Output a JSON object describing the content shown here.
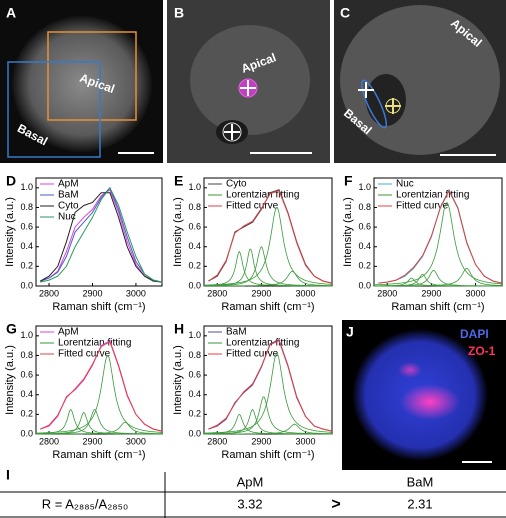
{
  "image_panels": [
    {
      "label": "A",
      "annotations": [
        "Apical",
        "Basal"
      ]
    },
    {
      "label": "B",
      "annotations": [
        "Apical"
      ]
    },
    {
      "label": "C",
      "annotations": [
        "Apical",
        "Basal"
      ]
    },
    {
      "label": "J",
      "annotations": [
        "DAPI",
        "ZO-1"
      ]
    }
  ],
  "chart_data": [
    {
      "type": "line",
      "label": "D",
      "xlabel": "Raman shift (cm⁻¹)",
      "ylabel": "Intensity (a.u.)",
      "x": [
        2780,
        2800,
        2820,
        2840,
        2860,
        2880,
        2900,
        2920,
        2940,
        2960,
        2980,
        3000,
        3020,
        3040,
        3060
      ],
      "xlim": [
        2770,
        3060
      ],
      "xticks": [
        2800,
        2900,
        3000
      ],
      "ylim": [
        0,
        1.1
      ],
      "yticks": [
        {
          "value": 0,
          "label": "0.0"
        },
        {
          "value": 0.2,
          "label": "0.2"
        },
        {
          "value": 0.4,
          "label": "0.4"
        },
        {
          "value": 0.6,
          "label": "0.6"
        },
        {
          "value": 0.8,
          "label": "0.8"
        },
        {
          "value": 1,
          "label": "1.0"
        }
      ],
      "series": [
        {
          "name": "ApM",
          "color": "#e040e0",
          "values": [
            0.05,
            0.08,
            0.15,
            0.35,
            0.6,
            0.7,
            0.78,
            0.92,
            0.98,
            0.75,
            0.45,
            0.22,
            0.1,
            0.06,
            0.04
          ]
        },
        {
          "name": "BaM",
          "color": "#4a5ad0",
          "values": [
            0.05,
            0.08,
            0.14,
            0.3,
            0.55,
            0.65,
            0.75,
            0.9,
            1.0,
            0.78,
            0.5,
            0.25,
            0.12,
            0.06,
            0.04
          ]
        },
        {
          "name": "Cyto",
          "color": "#222222",
          "values": [
            0.05,
            0.1,
            0.2,
            0.45,
            0.75,
            0.82,
            0.85,
            0.95,
            0.95,
            0.7,
            0.4,
            0.2,
            0.1,
            0.05,
            0.04
          ]
        },
        {
          "name": "Nuc",
          "color": "#2a9a5a",
          "values": [
            0.04,
            0.06,
            0.1,
            0.2,
            0.4,
            0.55,
            0.7,
            0.88,
            1.0,
            0.82,
            0.55,
            0.3,
            0.12,
            0.06,
            0.04
          ]
        }
      ]
    },
    {
      "type": "line",
      "label": "E",
      "xlabel": "Raman shift (cm⁻¹)",
      "ylabel": "Intensity (a.u.)",
      "x": [
        2780,
        2800,
        2820,
        2840,
        2860,
        2880,
        2900,
        2920,
        2940,
        2960,
        2980,
        3000,
        3020,
        3040,
        3060
      ],
      "xlim": [
        2770,
        3060
      ],
      "xticks": [
        2800,
        2900,
        3000
      ],
      "ylim": [
        0,
        1.1
      ],
      "yticks": [
        {
          "value": 0,
          "label": "0.0"
        },
        {
          "value": 0.2,
          "label": "0.2"
        },
        {
          "value": 0.4,
          "label": "0.4"
        },
        {
          "value": 0.6,
          "label": "0.6"
        },
        {
          "value": 0.8,
          "label": "0.8"
        },
        {
          "value": 1,
          "label": "1.0"
        }
      ],
      "series": [
        {
          "name": "Cyto",
          "color": "#444444",
          "values": [
            0.05,
            0.1,
            0.25,
            0.55,
            0.6,
            0.65,
            0.78,
            0.95,
            0.98,
            0.75,
            0.45,
            0.22,
            0.1,
            0.05,
            0.03
          ]
        },
        {
          "name": "Lorentzian fitting",
          "color": "#3a9a3a",
          "peaks": [
            {
              "center": 2850,
              "height": 0.35,
              "width": 10
            },
            {
              "center": 2875,
              "height": 0.38,
              "width": 10
            },
            {
              "center": 2900,
              "height": 0.4,
              "width": 12
            },
            {
              "center": 2935,
              "height": 0.8,
              "width": 18
            },
            {
              "center": 2970,
              "height": 0.15,
              "width": 14
            }
          ]
        },
        {
          "name": "Fitted curve",
          "color": "#e04040",
          "values": [
            0.05,
            0.11,
            0.26,
            0.54,
            0.61,
            0.66,
            0.79,
            0.94,
            0.97,
            0.74,
            0.44,
            0.21,
            0.1,
            0.05,
            0.03
          ]
        }
      ]
    },
    {
      "type": "line",
      "label": "F",
      "xlabel": "Raman shift (cm⁻¹)",
      "ylabel": "Intensity (a.u.)",
      "x": [
        2780,
        2800,
        2820,
        2840,
        2860,
        2880,
        2900,
        2920,
        2940,
        2960,
        2980,
        3000,
        3020,
        3040,
        3060
      ],
      "xlim": [
        2770,
        3060
      ],
      "xticks": [
        2800,
        2900,
        3000
      ],
      "ylim": [
        0,
        1.1
      ],
      "yticks": [
        {
          "value": 0,
          "label": "0.0"
        },
        {
          "value": 0.2,
          "label": "0.2"
        },
        {
          "value": 0.4,
          "label": "0.4"
        },
        {
          "value": 0.6,
          "label": "0.6"
        },
        {
          "value": 0.8,
          "label": "0.8"
        },
        {
          "value": 1,
          "label": "1.0"
        }
      ],
      "series": [
        {
          "name": "Nuc",
          "color": "#3ab0d0",
          "values": [
            0.03,
            0.04,
            0.06,
            0.1,
            0.18,
            0.3,
            0.5,
            0.8,
            0.98,
            0.8,
            0.45,
            0.22,
            0.1,
            0.05,
            0.03
          ]
        },
        {
          "name": "Lorentzian fitting",
          "color": "#3a9a3a",
          "peaks": [
            {
              "center": 2855,
              "height": 0.08,
              "width": 10
            },
            {
              "center": 2880,
              "height": 0.12,
              "width": 10
            },
            {
              "center": 2905,
              "height": 0.16,
              "width": 12
            },
            {
              "center": 2935,
              "height": 0.85,
              "width": 20
            },
            {
              "center": 2980,
              "height": 0.18,
              "width": 14
            }
          ]
        },
        {
          "name": "Fitted curve",
          "color": "#e04040",
          "values": [
            0.03,
            0.04,
            0.06,
            0.11,
            0.19,
            0.31,
            0.51,
            0.79,
            0.97,
            0.79,
            0.44,
            0.22,
            0.1,
            0.05,
            0.03
          ]
        }
      ]
    },
    {
      "type": "line",
      "label": "G",
      "xlabel": "Raman shift (cm⁻¹)",
      "ylabel": "Intensity (a.u.)",
      "x": [
        2780,
        2800,
        2820,
        2840,
        2860,
        2880,
        2900,
        2920,
        2940,
        2960,
        2980,
        3000,
        3020,
        3040,
        3060
      ],
      "xlim": [
        2770,
        3060
      ],
      "xticks": [
        2800,
        2900,
        3000
      ],
      "ylim": [
        0,
        1.1
      ],
      "yticks": [
        {
          "value": 0,
          "label": "0.0"
        },
        {
          "value": 0.2,
          "label": "0.2"
        },
        {
          "value": 0.4,
          "label": "0.4"
        },
        {
          "value": 0.6,
          "label": "0.6"
        },
        {
          "value": 0.8,
          "label": "0.8"
        },
        {
          "value": 1,
          "label": "1.0"
        }
      ],
      "series": [
        {
          "name": "ApM",
          "color": "#e040e0",
          "values": [
            0.05,
            0.08,
            0.18,
            0.38,
            0.45,
            0.55,
            0.7,
            0.9,
            0.95,
            0.7,
            0.4,
            0.2,
            0.1,
            0.05,
            0.03
          ]
        },
        {
          "name": "Lorentzian fitting",
          "color": "#3a9a3a",
          "peaks": [
            {
              "center": 2850,
              "height": 0.25,
              "width": 10
            },
            {
              "center": 2880,
              "height": 0.22,
              "width": 10
            },
            {
              "center": 2905,
              "height": 0.25,
              "width": 12
            },
            {
              "center": 2935,
              "height": 0.8,
              "width": 18
            },
            {
              "center": 2975,
              "height": 0.12,
              "width": 14
            }
          ]
        },
        {
          "name": "Fitted curve",
          "color": "#e04040",
          "values": [
            0.05,
            0.09,
            0.19,
            0.37,
            0.46,
            0.56,
            0.71,
            0.89,
            0.94,
            0.69,
            0.39,
            0.2,
            0.1,
            0.05,
            0.03
          ]
        }
      ]
    },
    {
      "type": "line",
      "label": "H",
      "xlabel": "Raman shift (cm⁻¹)",
      "ylabel": "Intensity (a.u.)",
      "x": [
        2780,
        2800,
        2820,
        2840,
        2860,
        2880,
        2900,
        2920,
        2940,
        2960,
        2980,
        3000,
        3020,
        3040,
        3060
      ],
      "xlim": [
        2770,
        3060
      ],
      "xticks": [
        2800,
        2900,
        3000
      ],
      "ylim": [
        0,
        1.1
      ],
      "yticks": [
        {
          "value": 0,
          "label": "0.0"
        },
        {
          "value": 0.2,
          "label": "0.2"
        },
        {
          "value": 0.4,
          "label": "0.4"
        },
        {
          "value": 0.6,
          "label": "0.6"
        },
        {
          "value": 0.8,
          "label": "0.8"
        },
        {
          "value": 1,
          "label": "1.0"
        }
      ],
      "series": [
        {
          "name": "BaM",
          "color": "#5a4aa0",
          "values": [
            0.05,
            0.08,
            0.15,
            0.32,
            0.42,
            0.5,
            0.68,
            0.92,
            0.96,
            0.7,
            0.38,
            0.18,
            0.08,
            0.05,
            0.03
          ]
        },
        {
          "name": "Lorentzian fitting",
          "color": "#3a9a3a",
          "peaks": [
            {
              "center": 2850,
              "height": 0.2,
              "width": 10
            },
            {
              "center": 2880,
              "height": 0.25,
              "width": 10
            },
            {
              "center": 2905,
              "height": 0.38,
              "width": 12
            },
            {
              "center": 2935,
              "height": 0.82,
              "width": 18
            },
            {
              "center": 2975,
              "height": 0.1,
              "width": 14
            }
          ]
        },
        {
          "name": "Fitted curve",
          "color": "#e04040",
          "values": [
            0.05,
            0.09,
            0.16,
            0.31,
            0.43,
            0.51,
            0.69,
            0.91,
            0.95,
            0.69,
            0.37,
            0.18,
            0.08,
            0.05,
            0.03
          ]
        }
      ]
    }
  ],
  "table": {
    "label": "I",
    "columns": [
      "ApM",
      "BaM"
    ],
    "row_label": "R = A₂₈₈₅/A₂₈₅₀",
    "values": [
      3.32,
      2.31
    ],
    "comparison": ">"
  }
}
